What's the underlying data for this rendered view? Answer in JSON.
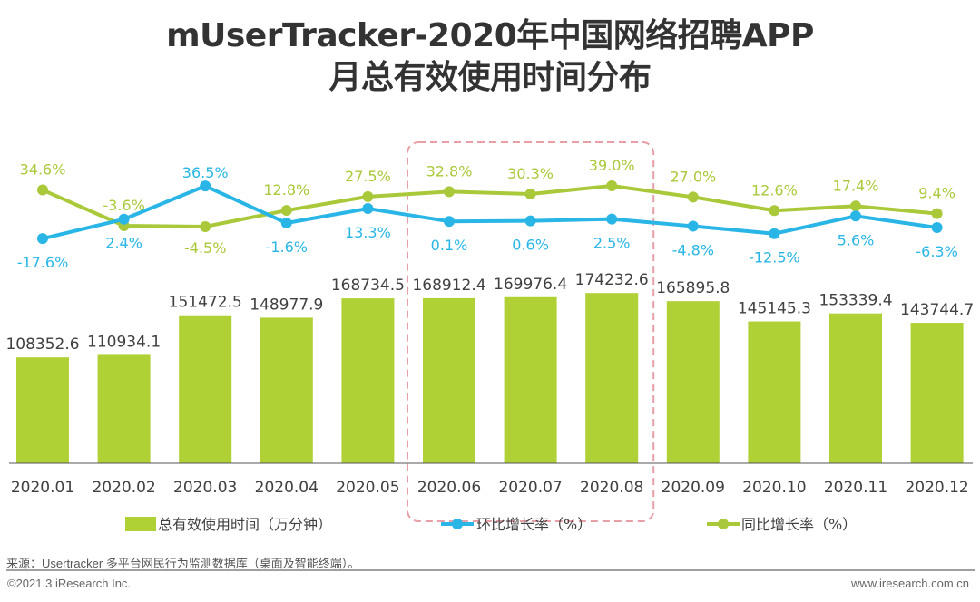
{
  "header": {
    "title_line1": "mUserTracker-2020年中国网络招聘APP",
    "title_line2": "月总有效使用时间分布"
  },
  "footer": {
    "source": "来源：Usertracker 多平台网民行为监测数据库（桌面及智能终端）。",
    "copyright": "©2021.3 iResearch Inc.",
    "website": "www.iresearch.com.cn"
  },
  "colors": {
    "bar": "#afd136",
    "mom_line": "#29b6e6",
    "yoy_line": "#a9c93a",
    "highlight_box": "#e8a0a8",
    "text": "#404040"
  },
  "chart_data": {
    "type": "bar",
    "title": "mUserTracker-2020年中国网络招聘APP月总有效使用时间分布",
    "categories": [
      "2020.01",
      "2020.02",
      "2020.03",
      "2020.04",
      "2020.05",
      "2020.06",
      "2020.07",
      "2020.08",
      "2020.09",
      "2020.10",
      "2020.11",
      "2020.12"
    ],
    "series": [
      {
        "name": "总有效使用时间（万分钟）",
        "type": "bar",
        "values": [
          108352.6,
          110934.1,
          151472.5,
          148977.9,
          168734.5,
          168912.4,
          169976.4,
          174232.6,
          165895.8,
          145145.3,
          153339.4,
          143744.7
        ],
        "labels": [
          "108352.6",
          "110934.1",
          "151472.5",
          "148977.9",
          "168734.5",
          "168912.4",
          "169976.4",
          "174232.6",
          "165895.8",
          "145145.3",
          "153339.4",
          "143744.7"
        ]
      },
      {
        "name": "环比增长率（%）",
        "type": "line",
        "values": [
          -17.6,
          2.4,
          36.5,
          -1.6,
          13.3,
          0.1,
          0.6,
          2.5,
          -4.8,
          -12.5,
          5.6,
          -6.3
        ],
        "labels": [
          "-17.6%",
          "2.4%",
          "36.5%",
          "-1.6%",
          "13.3%",
          "0.1%",
          "0.6%",
          "2.5%",
          "-4.8%",
          "-12.5%",
          "5.6%",
          "-6.3%"
        ]
      },
      {
        "name": "同比增长率（%）",
        "type": "line",
        "values": [
          34.6,
          -3.6,
          -4.5,
          12.8,
          27.5,
          32.8,
          30.3,
          39.0,
          27.0,
          12.6,
          17.4,
          9.4
        ],
        "labels": [
          "34.6%",
          "-3.6%",
          "-4.5%",
          "12.8%",
          "27.5%",
          "32.8%",
          "30.3%",
          "39.0%",
          "27.0%",
          "12.6%",
          "17.4%",
          "9.4%"
        ]
      }
    ],
    "highlight": {
      "from": "2020.06",
      "to": "2020.08",
      "style": "dashed-rounded-box"
    },
    "legend": {
      "position": "bottom",
      "entries": [
        "总有效使用时间（万分钟）",
        "环比增长率（%）",
        "同比增长率（%）"
      ]
    },
    "xlabel": "",
    "ylabel": "",
    "grid": false
  }
}
